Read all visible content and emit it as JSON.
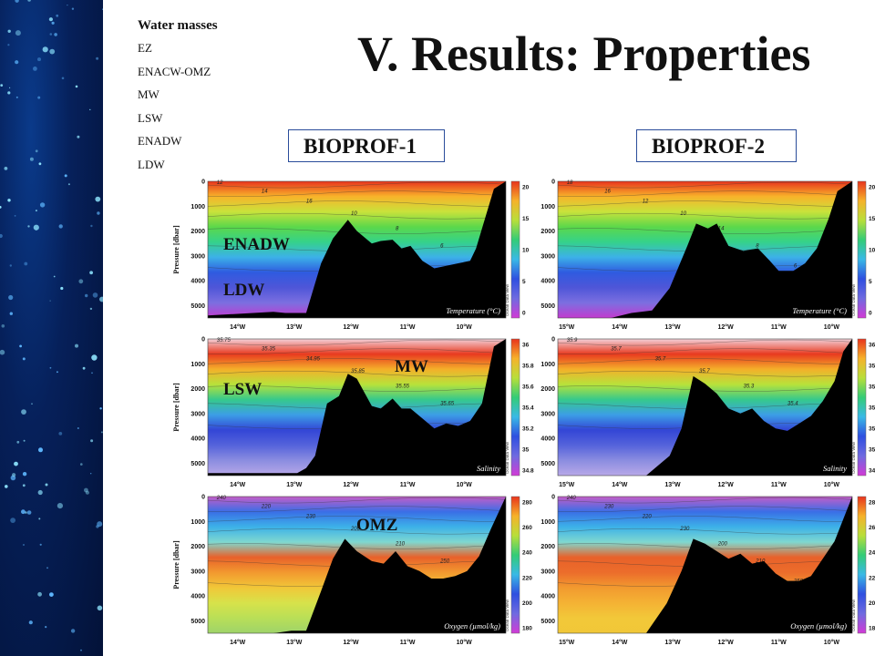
{
  "slide": {
    "title": "V. Results: Properties",
    "legend": {
      "heading": "Water masses",
      "items": [
        "EZ",
        "ENACW-OMZ",
        "MW",
        "LSW",
        "ENADW",
        "LDW"
      ]
    },
    "sections": [
      {
        "id": "b1",
        "label": "BIOPROF-1"
      },
      {
        "id": "b2",
        "label": "BIOPROF-2"
      }
    ],
    "overlay_labels": {
      "enadw": "ENADW",
      "ldw": "LDW",
      "mw": "MW",
      "lsw": "LSW",
      "omz": "OMZ"
    }
  },
  "chart_data": [
    {
      "type": "heatmap",
      "section": "BIOPROF-1",
      "variable": "Temperature (°C)",
      "ylabel": "Pressure [dbar]",
      "ylim": [
        5500,
        0
      ],
      "yticks": [
        "0",
        "1000",
        "2000",
        "3000",
        "4000",
        "5000"
      ],
      "xticks": [
        "14°W",
        "13°W",
        "12°W",
        "11°W",
        "10°W"
      ],
      "colorbar": {
        "ticks": [
          "20",
          "15",
          "10",
          "5",
          "0"
        ],
        "range": [
          0,
          22
        ]
      },
      "contours": [
        "12",
        "14",
        "16",
        "10",
        "8",
        "6",
        "4"
      ],
      "watermark": "Ocean Data View",
      "colors": [
        "#c23acf",
        "#7c6fe0",
        "#4f56d8",
        "#2f5be0",
        "#3cb1e8",
        "#35d28a",
        "#5cd84a",
        "#c9e23b",
        "#f8b32a",
        "#e8341d"
      ],
      "seafloor_x": [
        0,
        0.22,
        0.26,
        0.33,
        0.38,
        0.42,
        0.47,
        0.5,
        0.55,
        0.58,
        0.62,
        0.65,
        0.68,
        0.72,
        0.76,
        0.8,
        0.84,
        0.88,
        0.9,
        0.93,
        0.96,
        1
      ],
      "seafloor_p": [
        5400,
        5250,
        5300,
        5300,
        3300,
        2300,
        1550,
        2000,
        2500,
        2400,
        2350,
        2700,
        2600,
        3200,
        3500,
        3400,
        3300,
        3200,
        2700,
        1500,
        300,
        0
      ]
    },
    {
      "type": "heatmap",
      "section": "BIOPROF-2",
      "variable": "Temperature (°C)",
      "ylim": [
        5500,
        0
      ],
      "yticks": [
        "0",
        "1000",
        "2000",
        "3000",
        "4000",
        "5000"
      ],
      "xticks": [
        "15°W",
        "14°W",
        "13°W",
        "12°W",
        "11°W",
        "10°W"
      ],
      "colorbar": {
        "ticks": [
          "20",
          "15",
          "10",
          "5",
          "0"
        ],
        "range": [
          0,
          22
        ]
      },
      "contours": [
        "18",
        "16",
        "12",
        "10",
        "14",
        "8",
        "6",
        "4"
      ],
      "watermark": "Ocean Data View",
      "colors": [
        "#c23acf",
        "#7c6fe0",
        "#4f56d8",
        "#2f5be0",
        "#3cb1e8",
        "#35d28a",
        "#5cd84a",
        "#c9e23b",
        "#f8b32a",
        "#e8341d"
      ],
      "seafloor_x": [
        0,
        0.18,
        0.25,
        0.32,
        0.38,
        0.44,
        0.47,
        0.51,
        0.54,
        0.58,
        0.63,
        0.68,
        0.72,
        0.75,
        0.8,
        0.84,
        0.88,
        0.92,
        0.95,
        1
      ],
      "seafloor_p": [
        5500,
        5500,
        5300,
        5200,
        4300,
        2600,
        1700,
        1900,
        1700,
        2600,
        2800,
        2700,
        3200,
        3600,
        3600,
        3300,
        2700,
        1500,
        400,
        0
      ]
    },
    {
      "type": "heatmap",
      "section": "BIOPROF-1",
      "variable": "Salinity",
      "ylabel": "Pressure [dbar]",
      "ylim": [
        5500,
        0
      ],
      "yticks": [
        "0",
        "1000",
        "2000",
        "3000",
        "4000",
        "5000"
      ],
      "xticks": [
        "14°W",
        "13°W",
        "12°W",
        "11°W",
        "10°W"
      ],
      "colorbar": {
        "ticks": [
          "36",
          "35.8",
          "35.6",
          "35.4",
          "35.2",
          "35",
          "34.8"
        ],
        "range": [
          34.8,
          36
        ]
      },
      "contours": [
        "35.75",
        "35.35",
        "34.95",
        "35.85",
        "35.55",
        "35.65",
        "35.5"
      ],
      "watermark": "Ocean Data View",
      "colors": [
        "#b8a8e8",
        "#8b8de0",
        "#5563db",
        "#3346d6",
        "#3c9ee6",
        "#36c98c",
        "#b8e23a",
        "#f4b02a",
        "#e83a1f",
        "#f3d0d8"
      ],
      "seafloor_x": [
        0,
        0.3,
        0.33,
        0.36,
        0.4,
        0.44,
        0.47,
        0.5,
        0.55,
        0.58,
        0.62,
        0.65,
        0.68,
        0.72,
        0.76,
        0.8,
        0.84,
        0.88,
        0.92,
        0.96,
        1
      ],
      "seafloor_p": [
        5400,
        5400,
        5200,
        4700,
        2600,
        2300,
        1400,
        1600,
        2700,
        2800,
        2400,
        2800,
        2800,
        3200,
        3600,
        3400,
        3500,
        3300,
        2600,
        300,
        0
      ]
    },
    {
      "type": "heatmap",
      "section": "BIOPROF-2",
      "variable": "Salinity",
      "ylim": [
        5500,
        0
      ],
      "yticks": [
        "0",
        "1000",
        "2000",
        "3000",
        "4000",
        "5000"
      ],
      "xticks": [
        "15°W",
        "14°W",
        "13°W",
        "12°W",
        "11°W",
        "10°W"
      ],
      "colorbar": {
        "ticks": [
          "36",
          "35.8",
          "35.6",
          "35.4",
          "35.2",
          "35",
          "34.8"
        ],
        "range": [
          34.8,
          36
        ]
      },
      "contours": [
        "35.9",
        "35.7",
        "35.7",
        "35.7",
        "35.3",
        "35.4",
        "35.5"
      ],
      "watermark": "Ocean Data View",
      "colors": [
        "#b8a8e8",
        "#8b8de0",
        "#5563db",
        "#3346d6",
        "#3c9ee6",
        "#36c98c",
        "#b8e23a",
        "#f4b02a",
        "#e83a1f",
        "#f3d0d8"
      ],
      "seafloor_x": [
        0,
        0.3,
        0.38,
        0.42,
        0.46,
        0.5,
        0.54,
        0.58,
        0.62,
        0.66,
        0.7,
        0.74,
        0.78,
        0.82,
        0.86,
        0.9,
        0.94,
        0.97,
        1
      ],
      "seafloor_p": [
        5500,
        5500,
        4700,
        3600,
        1500,
        1800,
        2200,
        2800,
        3000,
        2800,
        3300,
        3600,
        3700,
        3400,
        3100,
        2500,
        1700,
        500,
        0
      ]
    },
    {
      "type": "heatmap",
      "section": "BIOPROF-1",
      "variable": "Oxygen (µmol/kg)",
      "ylabel": "Pressure [dbar]",
      "ylim": [
        5500,
        0
      ],
      "yticks": [
        "0",
        "1000",
        "2000",
        "3000",
        "4000",
        "5000"
      ],
      "xticks": [
        "14°W",
        "13°W",
        "12°W",
        "11°W",
        "10°W"
      ],
      "colorbar": {
        "ticks": [
          "280",
          "260",
          "240",
          "220",
          "200",
          "180"
        ],
        "range": [
          175,
          285
        ]
      },
      "contours": [
        "240",
        "220",
        "230",
        "200",
        "210",
        "250",
        "240"
      ],
      "watermark": "Ocean Data View",
      "colors": [
        "#9ed36a",
        "#b9df57",
        "#d7e24a",
        "#f1c738",
        "#f2992f",
        "#e8612a",
        "#7fd8d0",
        "#3cb1e8",
        "#3a6ee6",
        "#c45ec8"
      ],
      "seafloor_x": [
        0,
        0.22,
        0.28,
        0.33,
        0.38,
        0.42,
        0.46,
        0.5,
        0.55,
        0.59,
        0.63,
        0.67,
        0.71,
        0.75,
        0.79,
        0.83,
        0.87,
        0.91,
        0.95,
        1
      ],
      "seafloor_p": [
        5500,
        5500,
        5400,
        5400,
        3800,
        2500,
        1700,
        2200,
        2600,
        2700,
        2200,
        2800,
        3000,
        3300,
        3300,
        3200,
        3000,
        2400,
        1300,
        0
      ]
    },
    {
      "type": "heatmap",
      "section": "BIOPROF-2",
      "variable": "Oxygen (µmol/kg)",
      "ylim": [
        5500,
        0
      ],
      "yticks": [
        "0",
        "1000",
        "2000",
        "3000",
        "4000",
        "5000"
      ],
      "xticks": [
        "15°W",
        "14°W",
        "13°W",
        "12°W",
        "11°W",
        "10°W"
      ],
      "colorbar": {
        "ticks": [
          "280",
          "260",
          "240",
          "220",
          "200",
          "180"
        ],
        "range": [
          175,
          285
        ]
      },
      "contours": [
        "240",
        "230",
        "220",
        "230",
        "200",
        "210",
        "250",
        "260"
      ],
      "watermark": "Ocean Data View",
      "colors": [
        "#f1c738",
        "#f2c839",
        "#f4b234",
        "#f29a2f",
        "#ec6d2b",
        "#e8612a",
        "#7fd8d0",
        "#3cb1e8",
        "#3a6ee6",
        "#c45ec8"
      ],
      "seafloor_x": [
        0,
        0.3,
        0.37,
        0.42,
        0.46,
        0.5,
        0.54,
        0.58,
        0.62,
        0.66,
        0.7,
        0.74,
        0.78,
        0.82,
        0.86,
        0.9,
        0.94,
        0.97,
        1
      ],
      "seafloor_p": [
        5500,
        5500,
        4300,
        3000,
        1700,
        1900,
        2200,
        2500,
        2300,
        2700,
        2600,
        3100,
        3400,
        3400,
        3200,
        2500,
        1800,
        900,
        0
      ]
    }
  ]
}
